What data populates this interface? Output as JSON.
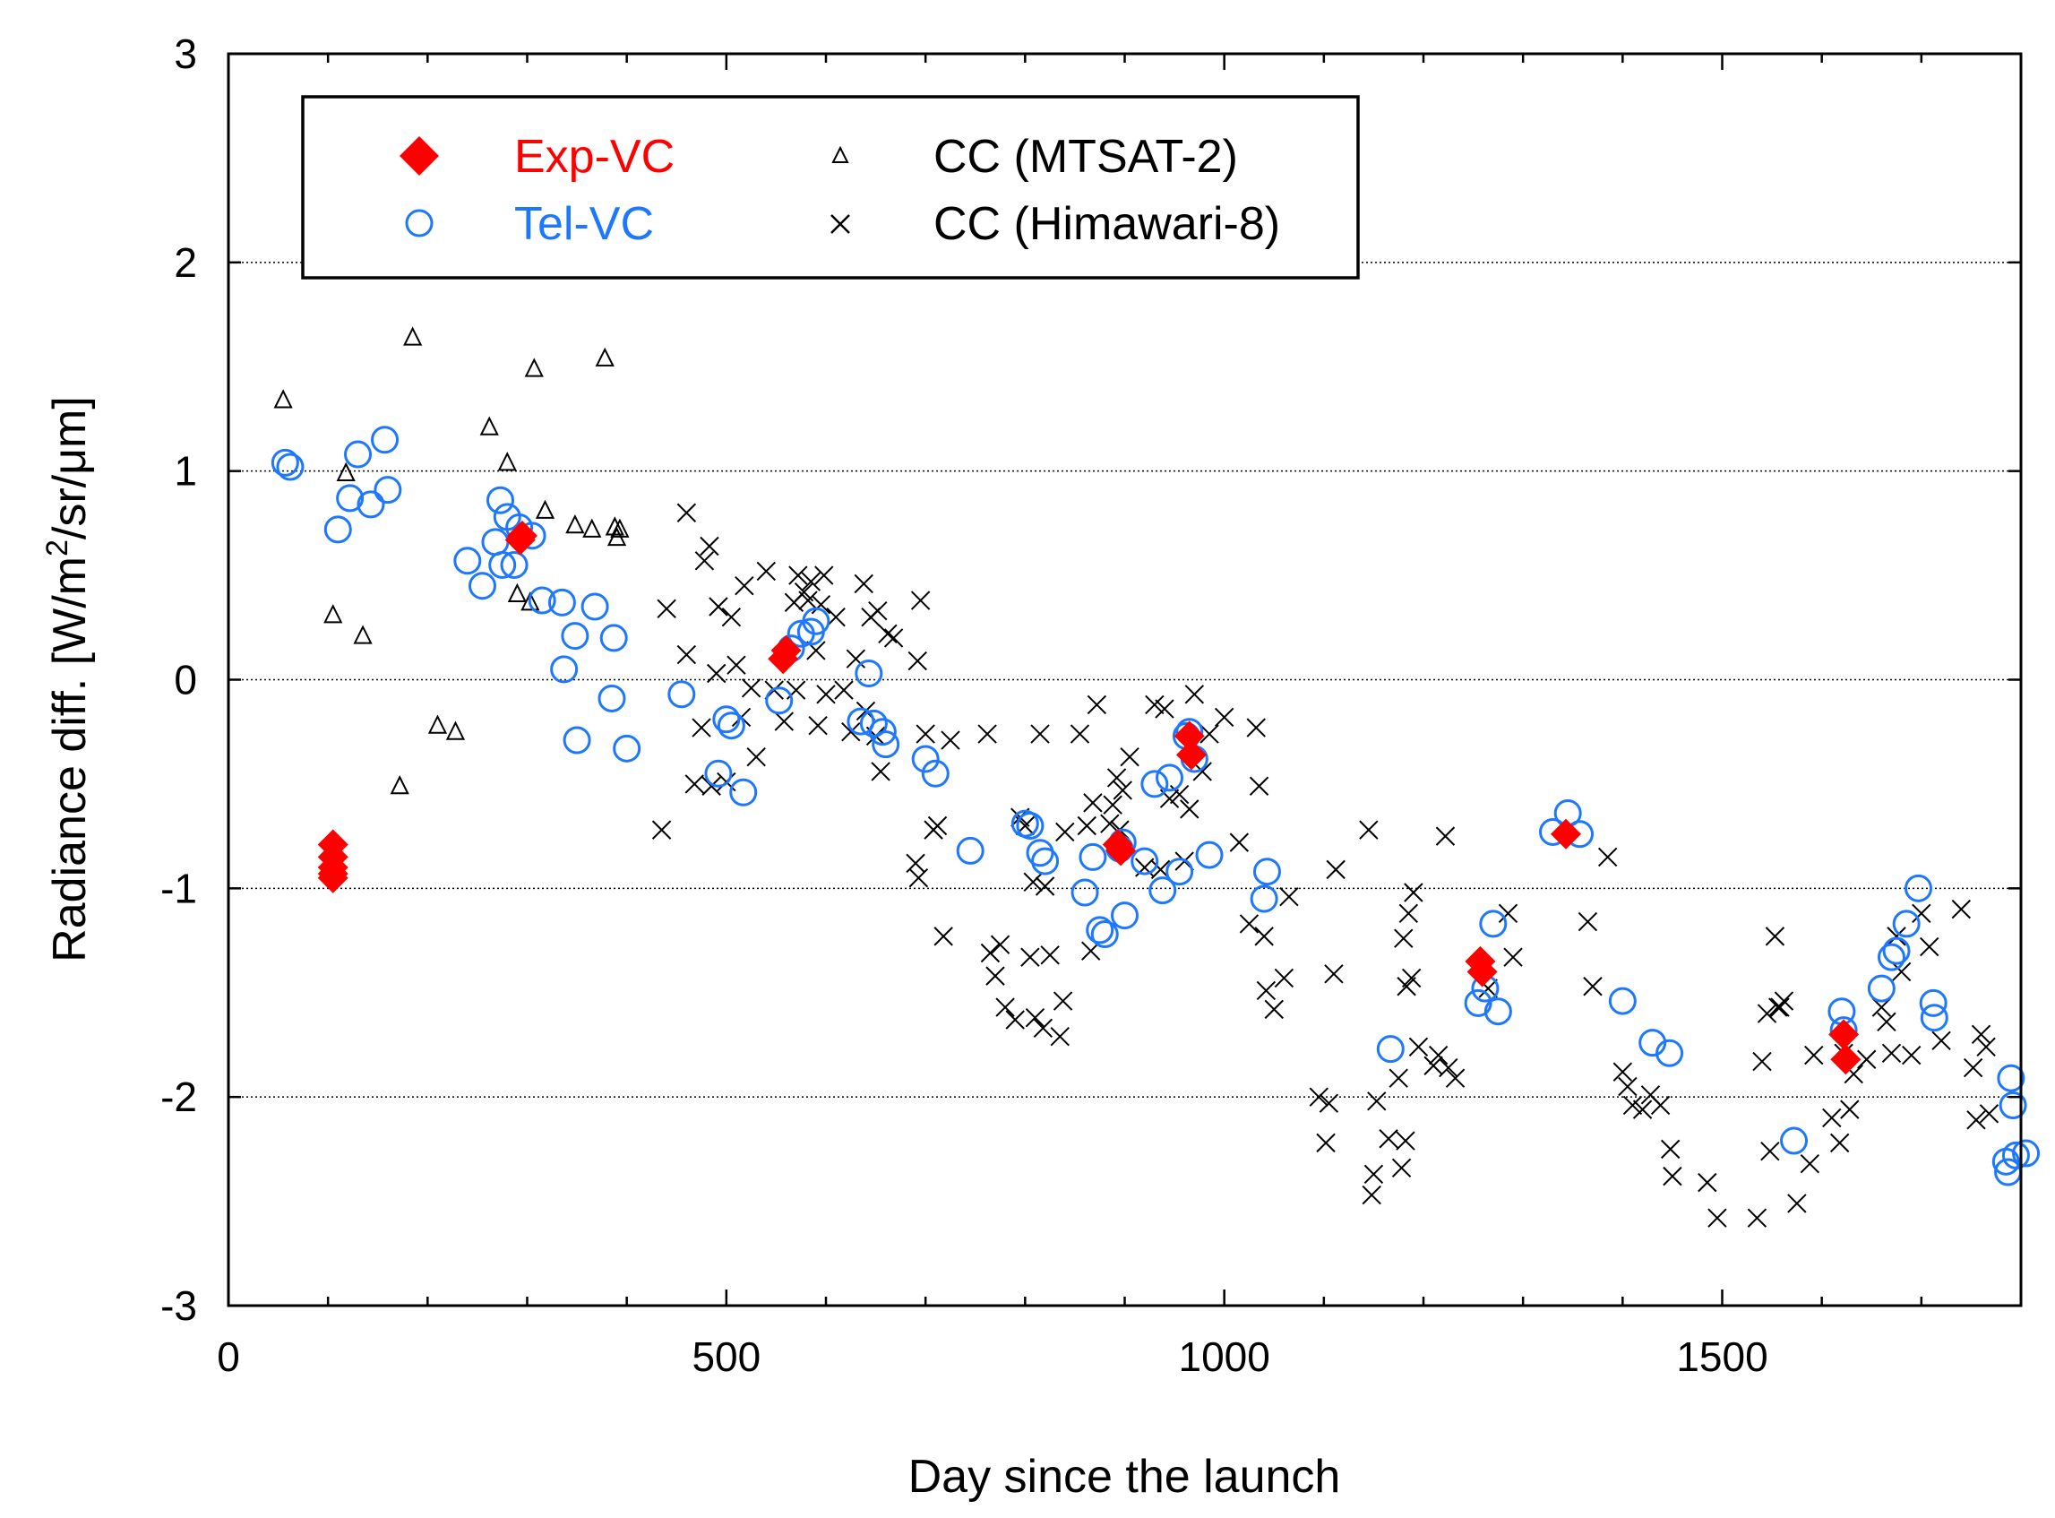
{
  "chart_data": {
    "type": "scatter",
    "title": "",
    "xlabel": "Day since the launch",
    "ylabel_prefix": "Radiance diff. [W/m",
    "ylabel_sup": "2",
    "ylabel_suffix": "/sr/μm]",
    "xlim": [
      0,
      1800
    ],
    "ylim": [
      -3,
      3
    ],
    "xticks": [
      0,
      500,
      1000,
      1500
    ],
    "yticks": [
      -3,
      -2,
      -1,
      0,
      1,
      2,
      3
    ],
    "grid": "horizontal dotted at y ticks",
    "legend_position": "top-left",
    "series": [
      {
        "name": "Exp-VC",
        "marker": "diamond",
        "color": "#ff0000",
        "points": [
          [
            105,
            -0.79
          ],
          [
            105,
            -0.85
          ],
          [
            105,
            -0.9
          ],
          [
            105,
            -0.93
          ],
          [
            105,
            -0.95
          ],
          [
            293,
            0.67
          ],
          [
            295,
            0.69
          ],
          [
            557,
            0.1
          ],
          [
            560,
            0.14
          ],
          [
            893,
            -0.79
          ],
          [
            896,
            -0.82
          ],
          [
            965,
            -0.27
          ],
          [
            967,
            -0.36
          ],
          [
            1257,
            -1.35
          ],
          [
            1259,
            -1.4
          ],
          [
            1343,
            -0.74
          ],
          [
            1622,
            -1.7
          ],
          [
            1624,
            -1.82
          ]
        ]
      },
      {
        "name": "Tel-VC",
        "marker": "circle",
        "color": "#1e78ff",
        "points": [
          [
            57,
            1.04
          ],
          [
            62,
            1.02
          ],
          [
            110,
            0.72
          ],
          [
            122,
            0.87
          ],
          [
            130,
            1.08
          ],
          [
            143,
            0.84
          ],
          [
            157,
            1.15
          ],
          [
            160,
            0.91
          ],
          [
            240,
            0.57
          ],
          [
            255,
            0.45
          ],
          [
            268,
            0.66
          ],
          [
            273,
            0.86
          ],
          [
            275,
            0.55
          ],
          [
            280,
            0.78
          ],
          [
            287,
            0.55
          ],
          [
            292,
            0.73
          ],
          [
            305,
            0.69
          ],
          [
            315,
            0.38
          ],
          [
            335,
            0.37
          ],
          [
            337,
            0.05
          ],
          [
            348,
            0.21
          ],
          [
            350,
            -0.29
          ],
          [
            368,
            0.35
          ],
          [
            385,
            -0.09
          ],
          [
            387,
            0.2
          ],
          [
            400,
            -0.33
          ],
          [
            455,
            -0.07
          ],
          [
            492,
            -0.45
          ],
          [
            500,
            -0.19
          ],
          [
            505,
            -0.22
          ],
          [
            517,
            -0.54
          ],
          [
            553,
            -0.1
          ],
          [
            565,
            0.15
          ],
          [
            575,
            0.22
          ],
          [
            585,
            0.23
          ],
          [
            590,
            0.28
          ],
          [
            635,
            -0.2
          ],
          [
            643,
            0.03
          ],
          [
            648,
            -0.21
          ],
          [
            657,
            -0.25
          ],
          [
            660,
            -0.31
          ],
          [
            700,
            -0.38
          ],
          [
            710,
            -0.45
          ],
          [
            745,
            -0.82
          ],
          [
            800,
            -0.69
          ],
          [
            805,
            -0.7
          ],
          [
            815,
            -0.83
          ],
          [
            820,
            -0.87
          ],
          [
            860,
            -1.02
          ],
          [
            868,
            -0.85
          ],
          [
            875,
            -1.2
          ],
          [
            880,
            -1.22
          ],
          [
            895,
            -0.81
          ],
          [
            898,
            -0.78
          ],
          [
            900,
            -1.13
          ],
          [
            920,
            -0.87
          ],
          [
            930,
            -0.5
          ],
          [
            938,
            -1.01
          ],
          [
            945,
            -0.47
          ],
          [
            955,
            -0.92
          ],
          [
            962,
            -0.27
          ],
          [
            965,
            -0.25
          ],
          [
            970,
            -0.38
          ],
          [
            985,
            -0.84
          ],
          [
            1040,
            -1.05
          ],
          [
            1043,
            -0.92
          ],
          [
            1167,
            -1.77
          ],
          [
            1255,
            -1.55
          ],
          [
            1262,
            -1.48
          ],
          [
            1270,
            -1.17
          ],
          [
            1275,
            -1.59
          ],
          [
            1330,
            -0.73
          ],
          [
            1345,
            -0.64
          ],
          [
            1357,
            -0.74
          ],
          [
            1400,
            -1.54
          ],
          [
            1430,
            -1.74
          ],
          [
            1447,
            -1.79
          ],
          [
            1572,
            -2.21
          ],
          [
            1620,
            -1.59
          ],
          [
            1622,
            -1.68
          ],
          [
            1660,
            -1.48
          ],
          [
            1670,
            -1.33
          ],
          [
            1675,
            -1.3
          ],
          [
            1685,
            -1.17
          ],
          [
            1697,
            -1.0
          ],
          [
            1712,
            -1.55
          ],
          [
            1713,
            -1.62
          ],
          [
            1785,
            -2.31
          ],
          [
            1787,
            -2.36
          ],
          [
            1790,
            -1.91
          ],
          [
            1792,
            -2.04
          ],
          [
            1795,
            -2.28
          ],
          [
            1805,
            -2.27
          ]
        ]
      },
      {
        "name": "CC (MTSAT-2)",
        "marker": "triangle",
        "color": "#000000",
        "points": [
          [
            55,
            1.34
          ],
          [
            105,
            0.31
          ],
          [
            118,
            0.99
          ],
          [
            135,
            0.21
          ],
          [
            172,
            -0.51
          ],
          [
            185,
            1.64
          ],
          [
            210,
            -0.22
          ],
          [
            228,
            -0.25
          ],
          [
            262,
            1.21
          ],
          [
            280,
            1.04
          ],
          [
            290,
            0.41
          ],
          [
            303,
            0.37
          ],
          [
            307,
            1.49
          ],
          [
            318,
            0.81
          ],
          [
            348,
            0.74
          ],
          [
            365,
            0.72
          ],
          [
            378,
            1.54
          ],
          [
            388,
            0.73
          ],
          [
            390,
            0.68
          ],
          [
            393,
            0.72
          ]
        ]
      },
      {
        "name": "CC (Himawari-8)",
        "marker": "x",
        "color": "#000000",
        "points": [
          [
            435,
            -0.72
          ],
          [
            440,
            0.34
          ],
          [
            460,
            0.8
          ],
          [
            460,
            0.12
          ],
          [
            468,
            -0.5
          ],
          [
            475,
            -0.23
          ],
          [
            478,
            0.57
          ],
          [
            483,
            0.64
          ],
          [
            485,
            -0.51
          ],
          [
            490,
            0.03
          ],
          [
            492,
            0.35
          ],
          [
            500,
            -0.49
          ],
          [
            505,
            0.3
          ],
          [
            510,
            0.07
          ],
          [
            515,
            -0.18
          ],
          [
            518,
            0.45
          ],
          [
            525,
            -0.04
          ],
          [
            530,
            -0.37
          ],
          [
            540,
            0.52
          ],
          [
            548,
            -0.05
          ],
          [
            558,
            -0.2
          ],
          [
            568,
            0.37
          ],
          [
            570,
            -0.05
          ],
          [
            572,
            0.5
          ],
          [
            578,
            0.42
          ],
          [
            582,
            0.38
          ],
          [
            585,
            0.47
          ],
          [
            590,
            0.14
          ],
          [
            592,
            -0.22
          ],
          [
            595,
            0.36
          ],
          [
            598,
            0.5
          ],
          [
            600,
            -0.07
          ],
          [
            610,
            0.3
          ],
          [
            618,
            -0.05
          ],
          [
            625,
            -0.25
          ],
          [
            630,
            0.1
          ],
          [
            638,
            0.46
          ],
          [
            640,
            -0.15
          ],
          [
            645,
            0.3
          ],
          [
            650,
            -0.27
          ],
          [
            652,
            0.33
          ],
          [
            655,
            -0.44
          ],
          [
            662,
            0.22
          ],
          [
            668,
            0.2
          ],
          [
            690,
            -0.88
          ],
          [
            692,
            0.09
          ],
          [
            693,
            -0.95
          ],
          [
            695,
            0.38
          ],
          [
            700,
            -0.26
          ],
          [
            708,
            -0.72
          ],
          [
            712,
            -0.7
          ],
          [
            718,
            -1.23
          ],
          [
            725,
            -0.29
          ],
          [
            762,
            -0.26
          ],
          [
            765,
            -1.31
          ],
          [
            770,
            -1.42
          ],
          [
            775,
            -1.27
          ],
          [
            780,
            -1.57
          ],
          [
            790,
            -1.63
          ],
          [
            795,
            -0.66
          ],
          [
            800,
            -0.7
          ],
          [
            805,
            -1.33
          ],
          [
            808,
            -0.97
          ],
          [
            810,
            -1.62
          ],
          [
            815,
            -0.26
          ],
          [
            818,
            -1.67
          ],
          [
            820,
            -0.99
          ],
          [
            825,
            -1.32
          ],
          [
            835,
            -1.71
          ],
          [
            838,
            -1.54
          ],
          [
            840,
            -0.73
          ],
          [
            855,
            -0.26
          ],
          [
            862,
            -0.7
          ],
          [
            866,
            -1.3
          ],
          [
            868,
            -0.59
          ],
          [
            872,
            -0.12
          ],
          [
            885,
            -0.69
          ],
          [
            888,
            -0.6
          ],
          [
            892,
            -0.47
          ],
          [
            895,
            -0.72
          ],
          [
            898,
            -0.53
          ],
          [
            905,
            -0.37
          ],
          [
            920,
            -0.9
          ],
          [
            930,
            -0.12
          ],
          [
            936,
            -0.91
          ],
          [
            940,
            -0.14
          ],
          [
            945,
            -0.57
          ],
          [
            955,
            -0.55
          ],
          [
            960,
            -0.87
          ],
          [
            965,
            -0.62
          ],
          [
            970,
            -0.07
          ],
          [
            978,
            -0.44
          ],
          [
            985,
            -0.26
          ],
          [
            1000,
            -0.18
          ],
          [
            1015,
            -0.78
          ],
          [
            1025,
            -1.17
          ],
          [
            1032,
            -0.23
          ],
          [
            1035,
            -0.51
          ],
          [
            1040,
            -1.23
          ],
          [
            1042,
            -1.49
          ],
          [
            1050,
            -1.58
          ],
          [
            1060,
            -1.43
          ],
          [
            1065,
            -1.04
          ],
          [
            1095,
            -2.0
          ],
          [
            1102,
            -2.22
          ],
          [
            1105,
            -2.03
          ],
          [
            1110,
            -1.41
          ],
          [
            1112,
            -0.91
          ],
          [
            1145,
            -0.72
          ],
          [
            1148,
            -2.47
          ],
          [
            1150,
            -2.37
          ],
          [
            1153,
            -2.02
          ],
          [
            1165,
            -2.2
          ],
          [
            1175,
            -1.91
          ],
          [
            1178,
            -2.34
          ],
          [
            1180,
            -1.24
          ],
          [
            1182,
            -2.21
          ],
          [
            1183,
            -1.47
          ],
          [
            1185,
            -1.12
          ],
          [
            1188,
            -1.43
          ],
          [
            1190,
            -1.02
          ],
          [
            1195,
            -1.76
          ],
          [
            1210,
            -1.85
          ],
          [
            1215,
            -1.8
          ],
          [
            1222,
            -0.75
          ],
          [
            1225,
            -1.86
          ],
          [
            1232,
            -1.91
          ],
          [
            1265,
            -1.48
          ],
          [
            1285,
            -1.12
          ],
          [
            1290,
            -1.33
          ],
          [
            1365,
            -1.16
          ],
          [
            1370,
            -1.47
          ],
          [
            1385,
            -0.85
          ],
          [
            1400,
            -1.88
          ],
          [
            1405,
            -1.95
          ],
          [
            1410,
            -2.04
          ],
          [
            1420,
            -2.06
          ],
          [
            1428,
            -1.99
          ],
          [
            1438,
            -2.04
          ],
          [
            1448,
            -2.25
          ],
          [
            1450,
            -2.38
          ],
          [
            1485,
            -2.41
          ],
          [
            1495,
            -2.58
          ],
          [
            1535,
            -2.58
          ],
          [
            1540,
            -1.83
          ],
          [
            1545,
            -1.6
          ],
          [
            1548,
            -2.26
          ],
          [
            1553,
            -1.23
          ],
          [
            1556,
            -1.57
          ],
          [
            1558,
            -1.57
          ],
          [
            1562,
            -1.54
          ],
          [
            1575,
            -2.51
          ],
          [
            1588,
            -2.32
          ],
          [
            1592,
            -1.8
          ],
          [
            1610,
            -2.1
          ],
          [
            1618,
            -2.22
          ],
          [
            1622,
            -1.79
          ],
          [
            1628,
            -2.06
          ],
          [
            1632,
            -1.89
          ],
          [
            1645,
            -1.82
          ],
          [
            1660,
            -1.57
          ],
          [
            1665,
            -1.64
          ],
          [
            1670,
            -1.79
          ],
          [
            1675,
            -1.23
          ],
          [
            1680,
            -1.4
          ],
          [
            1690,
            -1.8
          ],
          [
            1700,
            -1.12
          ],
          [
            1708,
            -1.28
          ],
          [
            1720,
            -1.73
          ],
          [
            1740,
            -1.1
          ],
          [
            1752,
            -1.86
          ],
          [
            1755,
            -2.11
          ],
          [
            1760,
            -1.7
          ],
          [
            1765,
            -1.76
          ],
          [
            1768,
            -2.08
          ]
        ]
      }
    ]
  }
}
